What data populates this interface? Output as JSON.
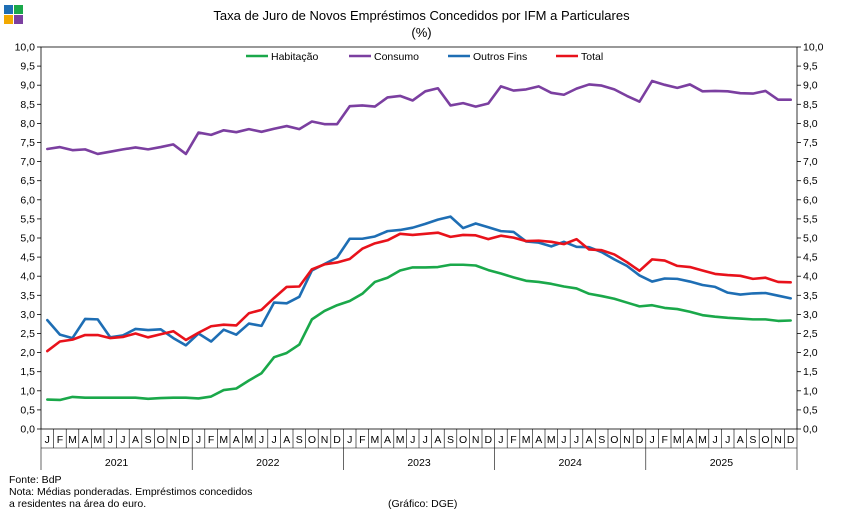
{
  "chart_data": {
    "type": "line",
    "title": "Taxa de Juro de Novos Empréstimos Concedidos por IFM a Particulares",
    "subtitle": "(%)",
    "ylim": [
      0,
      10
    ],
    "ytick_step": 0.5,
    "ytick_labels": [
      "0,0",
      "0,5",
      "1,0",
      "1,5",
      "2,0",
      "2,5",
      "3,0",
      "3,5",
      "4,0",
      "4,5",
      "5,0",
      "5,5",
      "6,0",
      "6,5",
      "7,0",
      "7,5",
      "8,0",
      "8,5",
      "9,0",
      "9,5",
      "10,0"
    ],
    "month_labels": [
      "J",
      "F",
      "M",
      "A",
      "M",
      "J",
      "J",
      "A",
      "S",
      "O",
      "N",
      "D"
    ],
    "years": [
      "2021",
      "2022",
      "2023",
      "2024",
      "2025"
    ],
    "series": [
      {
        "name": "Habitação",
        "color": "#1aa84a",
        "values": [
          0.77,
          0.76,
          0.84,
          0.82,
          0.82,
          0.82,
          0.82,
          0.82,
          0.79,
          0.81,
          0.82,
          0.82,
          0.8,
          0.85,
          1.02,
          1.06,
          1.27,
          1.46,
          1.88,
          1.99,
          2.21,
          2.87,
          3.09,
          3.24,
          3.35,
          3.54,
          3.85,
          3.96,
          4.15,
          4.23,
          4.23,
          4.24,
          4.3,
          4.3,
          4.28,
          4.16,
          4.07,
          3.97,
          3.88,
          3.85,
          3.8,
          3.73,
          3.68,
          3.54,
          3.48,
          3.41,
          3.31,
          3.21,
          3.24,
          3.17,
          3.14,
          3.07,
          2.98,
          2.94,
          2.91,
          2.89,
          2.87,
          2.87,
          2.83,
          2.84
        ]
      },
      {
        "name": "Consumo",
        "color": "#7b3fa0",
        "values": [
          7.33,
          7.38,
          7.3,
          7.32,
          7.2,
          7.26,
          7.32,
          7.37,
          7.32,
          7.38,
          7.45,
          7.2,
          7.76,
          7.7,
          7.82,
          7.77,
          7.85,
          7.78,
          7.86,
          7.93,
          7.85,
          8.05,
          7.98,
          7.98,
          8.45,
          8.47,
          8.44,
          8.68,
          8.72,
          8.6,
          8.84,
          8.92,
          8.47,
          8.53,
          8.44,
          8.52,
          8.97,
          8.86,
          8.89,
          8.97,
          8.8,
          8.75,
          8.91,
          9.02,
          8.99,
          8.89,
          8.72,
          8.57,
          9.11,
          9.01,
          8.93,
          9.02,
          8.84,
          8.85,
          8.84,
          8.79,
          8.78,
          8.85,
          8.62,
          8.62
        ]
      },
      {
        "name": "Outros Fins",
        "color": "#1e6eb4",
        "values": [
          2.85,
          2.47,
          2.38,
          2.88,
          2.87,
          2.4,
          2.45,
          2.62,
          2.59,
          2.61,
          2.38,
          2.19,
          2.5,
          2.29,
          2.6,
          2.47,
          2.76,
          2.7,
          3.31,
          3.29,
          3.46,
          4.15,
          4.32,
          4.49,
          4.98,
          4.98,
          5.04,
          5.18,
          5.21,
          5.27,
          5.37,
          5.48,
          5.56,
          5.26,
          5.38,
          5.28,
          5.18,
          5.16,
          4.91,
          4.88,
          4.78,
          4.9,
          4.77,
          4.76,
          4.63,
          4.44,
          4.27,
          4.02,
          3.86,
          3.94,
          3.93,
          3.86,
          3.77,
          3.72,
          3.57,
          3.52,
          3.55,
          3.56,
          3.49,
          3.42
        ]
      },
      {
        "name": "Total",
        "color": "#e8121b",
        "values": [
          2.04,
          2.29,
          2.34,
          2.46,
          2.46,
          2.38,
          2.41,
          2.5,
          2.4,
          2.48,
          2.56,
          2.33,
          2.52,
          2.69,
          2.73,
          2.71,
          3.03,
          3.12,
          3.43,
          3.72,
          3.73,
          4.18,
          4.31,
          4.36,
          4.45,
          4.72,
          4.86,
          4.94,
          5.11,
          5.08,
          5.11,
          5.14,
          5.03,
          5.08,
          5.07,
          4.97,
          5.06,
          5.01,
          4.92,
          4.93,
          4.9,
          4.84,
          4.97,
          4.7,
          4.68,
          4.57,
          4.37,
          4.14,
          4.44,
          4.41,
          4.27,
          4.24,
          4.15,
          4.06,
          4.03,
          4.01,
          3.93,
          3.96,
          3.85,
          3.84
        ]
      }
    ]
  },
  "footer": {
    "source": "Fonte: BdP",
    "note_line1": "Nota: Médias ponderadas. Empréstimos concedidos",
    "note_line2": "a residentes na área do euro.",
    "credit": "(Gráfico: DGE)"
  },
  "logo_colors": [
    "#1e6eb4",
    "#1aa84a",
    "#f2a900",
    "#7b3fa0"
  ]
}
